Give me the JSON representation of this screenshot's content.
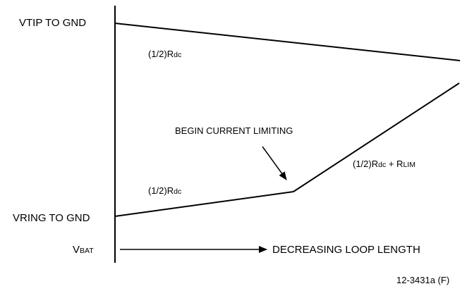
{
  "axis_labels": {
    "vtip_to_gnd": "VTIP TO GND",
    "vring_to_gnd": "VRING TO GND",
    "vbat_main": "V",
    "vbat_sub": "BAT"
  },
  "annotations": {
    "tip_slope_main": "(1/2)R",
    "tip_slope_sub": "dc",
    "ring_slope_main": "(1/2)R",
    "ring_slope_sub": "dc",
    "limit_slope_main1": "(1/2)R",
    "limit_slope_sub1": "dc",
    "limit_slope_plus": " + R",
    "limit_slope_sub2": "LIM",
    "begin_current_limiting": "BEGIN CURRENT LIMITING",
    "decreasing_loop_length": "DECREASING LOOP LENGTH"
  },
  "figure_ref": "12-3431a (F)",
  "colors": {
    "ink": "#000000",
    "background": "#ffffff"
  }
}
